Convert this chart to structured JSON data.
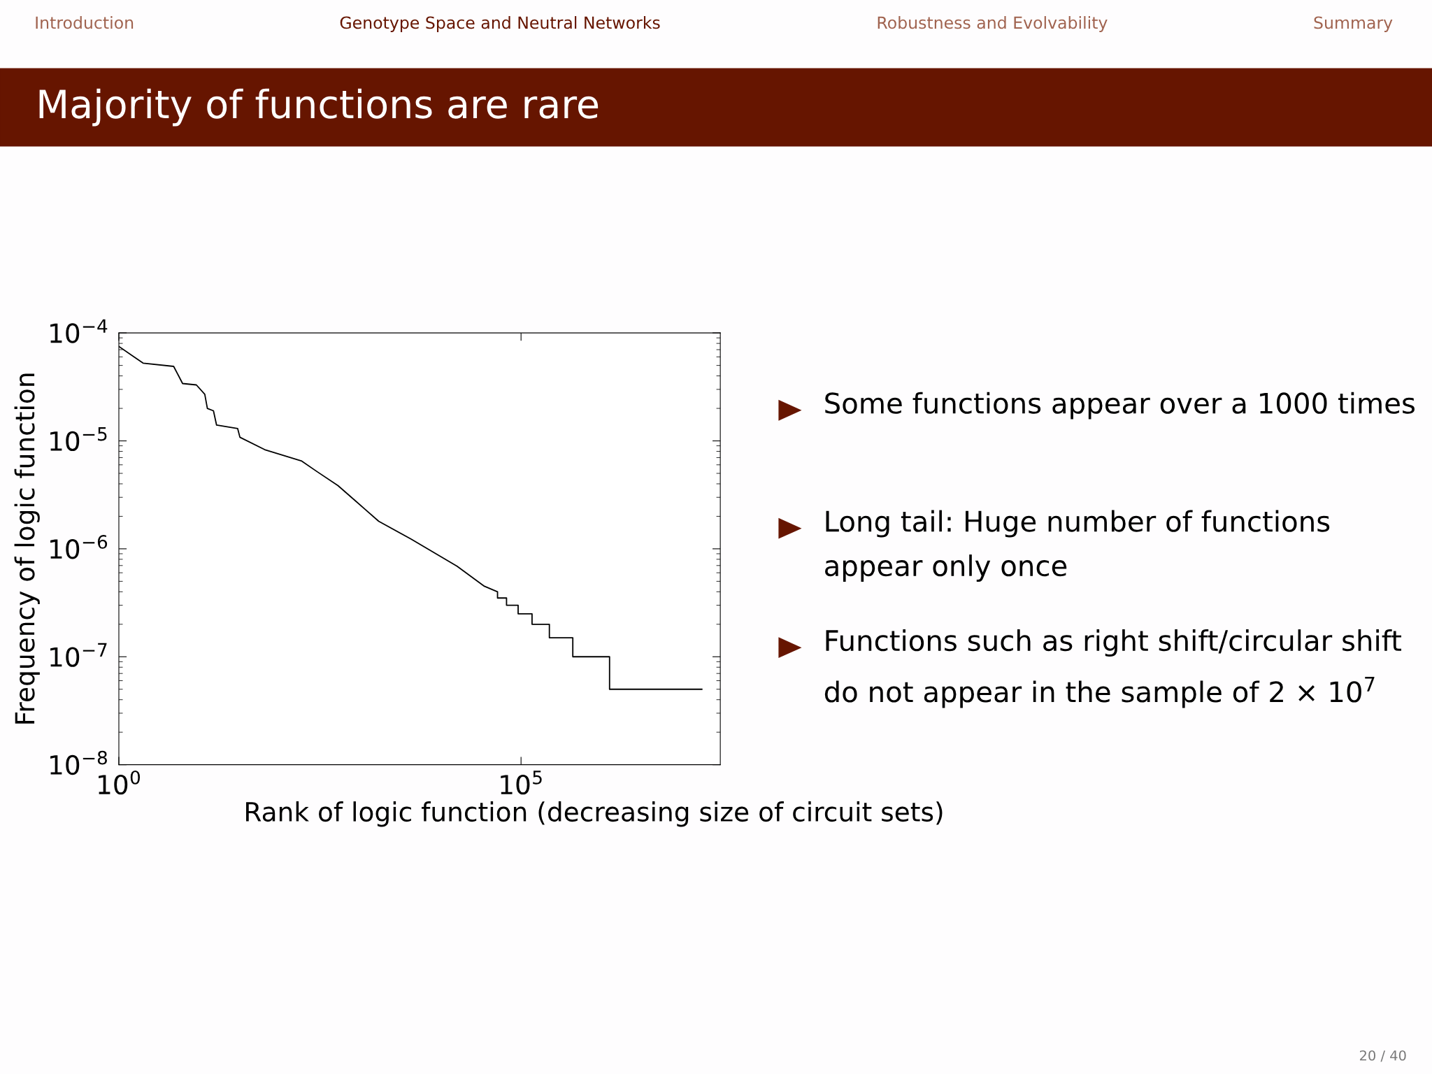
{
  "chart_data": {
    "type": "line",
    "title": "Majority of functions are rare",
    "xlabel": "Rank of logic function (decreasing size of circuit sets)",
    "ylabel": "Frequency of logic function",
    "log": "xy",
    "grid": false,
    "legend": false,
    "marker": "none",
    "line_style": "solid",
    "xlim": [
      1,
      30000000
    ],
    "ylim": [
      1e-08,
      0.0001
    ],
    "xticks": [
      {
        "value": 1,
        "label": "10$^{0}$"
      },
      {
        "value": 100000,
        "label": "10$^{5}$"
      }
    ],
    "yticks": [
      {
        "value": 1e-08,
        "label": "10$^{−8}$"
      },
      {
        "value": 1e-07,
        "label": "10$^{−7}$"
      },
      {
        "value": 1e-06,
        "label": "10$^{−6}$"
      },
      {
        "value": 1e-05,
        "label": "10$^{−5}$"
      },
      {
        "value": 0.0001,
        "label": "10$^{−4}$"
      }
    ],
    "series": [
      {
        "color": "#000000",
        "x": [
          1,
          2,
          4.8,
          6.2,
          9.2,
          11.7,
          12.6,
          15,
          16.4,
          30,
          32,
          65,
          188,
          290,
          530,
          1170,
          1700,
          4300,
          16000,
          35000,
          51000,
          51000,
          66000,
          66000,
          92000,
          92000,
          137000,
          137000,
          225000,
          225000,
          440000,
          440000,
          1260000,
          1260000,
          17700000
        ],
        "values": [
          7.5e-05,
          5.25e-05,
          4.9e-05,
          3.4e-05,
          3.3e-05,
          2.7e-05,
          2e-05,
          1.9e-05,
          1.4e-05,
          1.3e-05,
          1.08e-05,
          8.3e-06,
          6.5e-06,
          5.2e-06,
          3.85e-06,
          2.3e-06,
          1.8e-06,
          1.23e-06,
          6.9e-07,
          4.5e-07,
          4e-07,
          3.5e-07,
          3.5e-07,
          3e-07,
          3e-07,
          2.5e-07,
          2.5e-07,
          2e-07,
          2e-07,
          1.5e-07,
          1.5e-07,
          1e-07,
          1e-07,
          5e-08,
          5e-08
        ]
      }
    ],
    "annotations": [
      "Introduction",
      "Genotype Space and Neutral Networks",
      "Robustness and Evolvability",
      "Summary",
      "Some functions appear over a 1000 times",
      "Long tail: Huge number of functions appear only once",
      "Functions such as right shift/circular shift do not appear in the sample of 2 × 10$^{7}$",
      "20 / 40"
    ]
  }
}
